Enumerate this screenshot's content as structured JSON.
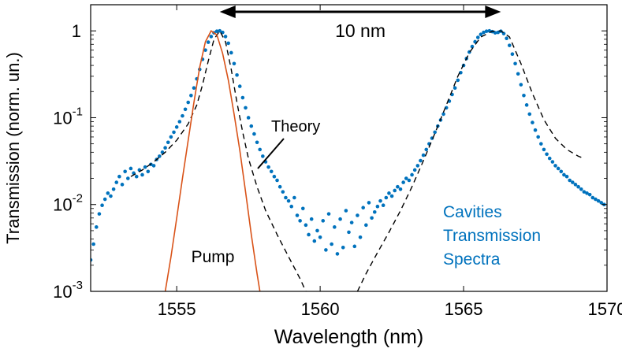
{
  "chart_data": {
    "type": "scatter",
    "title": "",
    "xlabel": "Wavelength (nm)",
    "ylabel": "Transmission (norm. un.)",
    "xlim": [
      1552,
      1570
    ],
    "ylim": [
      0.001,
      2
    ],
    "yscale": "log",
    "grid": false,
    "xticks": [
      1555,
      1560,
      1565,
      1570
    ],
    "xtick_labels": [
      "1555",
      "1560",
      "1565",
      "1570"
    ],
    "yticks": [
      {
        "value": 1,
        "base": "1",
        "exp": ""
      },
      {
        "value": 0.1,
        "base": "10",
        "exp": "-1"
      },
      {
        "value": 0.01,
        "base": "10",
        "exp": "-2"
      },
      {
        "value": 0.001,
        "base": "10",
        "exp": "-3"
      }
    ],
    "peaks_nm": [
      1556.5,
      1566.3
    ],
    "series": [
      {
        "name": "Cavities Transmission Spectra",
        "kind": "scatter",
        "color": "#0072BD",
        "points": [
          [
            1552.0,
            0.0023
          ],
          [
            1552.1,
            0.0035
          ],
          [
            1552.2,
            0.0055
          ],
          [
            1552.3,
            0.0078
          ],
          [
            1552.4,
            0.0098
          ],
          [
            1552.5,
            0.0115
          ],
          [
            1552.6,
            0.0135
          ],
          [
            1552.7,
            0.0125
          ],
          [
            1552.8,
            0.015
          ],
          [
            1552.9,
            0.018
          ],
          [
            1553.0,
            0.021
          ],
          [
            1553.1,
            0.017
          ],
          [
            1553.2,
            0.024
          ],
          [
            1553.3,
            0.02
          ],
          [
            1553.4,
            0.026
          ],
          [
            1553.5,
            0.023
          ],
          [
            1553.6,
            0.021
          ],
          [
            1553.7,
            0.025
          ],
          [
            1553.8,
            0.022
          ],
          [
            1553.9,
            0.027
          ],
          [
            1554.0,
            0.024
          ],
          [
            1554.1,
            0.029
          ],
          [
            1554.2,
            0.028
          ],
          [
            1554.3,
            0.033
          ],
          [
            1554.4,
            0.036
          ],
          [
            1554.5,
            0.04
          ],
          [
            1554.6,
            0.045
          ],
          [
            1554.7,
            0.052
          ],
          [
            1554.8,
            0.06
          ],
          [
            1554.9,
            0.068
          ],
          [
            1555.0,
            0.078
          ],
          [
            1555.1,
            0.09
          ],
          [
            1555.2,
            0.105
          ],
          [
            1555.3,
            0.125
          ],
          [
            1555.4,
            0.15
          ],
          [
            1555.5,
            0.18
          ],
          [
            1555.6,
            0.22
          ],
          [
            1555.7,
            0.28
          ],
          [
            1555.8,
            0.36
          ],
          [
            1555.9,
            0.47
          ],
          [
            1556.0,
            0.6
          ],
          [
            1556.1,
            0.74
          ],
          [
            1556.2,
            0.86
          ],
          [
            1556.3,
            0.95
          ],
          [
            1556.4,
            0.99
          ],
          [
            1556.5,
            1.0
          ],
          [
            1556.6,
            0.96
          ],
          [
            1556.7,
            0.86
          ],
          [
            1556.8,
            0.72
          ],
          [
            1556.9,
            0.56
          ],
          [
            1557.0,
            0.42
          ],
          [
            1557.1,
            0.31
          ],
          [
            1557.2,
            0.23
          ],
          [
            1557.3,
            0.17
          ],
          [
            1557.4,
            0.13
          ],
          [
            1557.5,
            0.1
          ],
          [
            1557.6,
            0.08
          ],
          [
            1557.7,
            0.065
          ],
          [
            1557.8,
            0.052
          ],
          [
            1557.9,
            0.043
          ],
          [
            1558.0,
            0.036
          ],
          [
            1558.1,
            0.031
          ],
          [
            1558.2,
            0.027
          ],
          [
            1558.3,
            0.024
          ],
          [
            1558.4,
            0.021
          ],
          [
            1558.5,
            0.019
          ],
          [
            1558.6,
            0.016
          ],
          [
            1558.7,
            0.014
          ],
          [
            1558.8,
            0.012
          ],
          [
            1558.9,
            0.011
          ],
          [
            1559.0,
            0.0095
          ],
          [
            1559.1,
            0.012
          ],
          [
            1559.2,
            0.0075
          ],
          [
            1559.3,
            0.0065
          ],
          [
            1559.4,
            0.009
          ],
          [
            1559.5,
            0.0058
          ],
          [
            1559.6,
            0.0045
          ],
          [
            1559.7,
            0.0068
          ],
          [
            1559.8,
            0.0038
          ],
          [
            1559.9,
            0.005
          ],
          [
            1560.0,
            0.0042
          ],
          [
            1560.1,
            0.0065
          ],
          [
            1560.2,
            0.003
          ],
          [
            1560.3,
            0.0078
          ],
          [
            1560.4,
            0.0035
          ],
          [
            1560.5,
            0.0055
          ],
          [
            1560.6,
            0.0027
          ],
          [
            1560.7,
            0.0068
          ],
          [
            1560.8,
            0.0032
          ],
          [
            1560.9,
            0.0085
          ],
          [
            1561.0,
            0.0048
          ],
          [
            1561.1,
            0.0062
          ],
          [
            1561.2,
            0.0033
          ],
          [
            1561.3,
            0.0075
          ],
          [
            1561.4,
            0.0042
          ],
          [
            1561.5,
            0.0092
          ],
          [
            1561.6,
            0.0058
          ],
          [
            1561.7,
            0.0105
          ],
          [
            1561.8,
            0.007
          ],
          [
            1561.9,
            0.0082
          ],
          [
            1562.0,
            0.0095
          ],
          [
            1562.1,
            0.011
          ],
          [
            1562.2,
            0.0098
          ],
          [
            1562.3,
            0.012
          ],
          [
            1562.4,
            0.0135
          ],
          [
            1562.5,
            0.0125
          ],
          [
            1562.6,
            0.0145
          ],
          [
            1562.7,
            0.016
          ],
          [
            1562.8,
            0.015
          ],
          [
            1562.9,
            0.018
          ],
          [
            1563.0,
            0.02
          ],
          [
            1563.1,
            0.019
          ],
          [
            1563.2,
            0.022
          ],
          [
            1563.3,
            0.025
          ],
          [
            1563.4,
            0.028
          ],
          [
            1563.5,
            0.032
          ],
          [
            1563.6,
            0.037
          ],
          [
            1563.7,
            0.043
          ],
          [
            1563.8,
            0.05
          ],
          [
            1563.9,
            0.058
          ],
          [
            1564.0,
            0.068
          ],
          [
            1564.1,
            0.08
          ],
          [
            1564.2,
            0.094
          ],
          [
            1564.3,
            0.11
          ],
          [
            1564.4,
            0.13
          ],
          [
            1564.5,
            0.155
          ],
          [
            1564.6,
            0.185
          ],
          [
            1564.7,
            0.22
          ],
          [
            1564.8,
            0.27
          ],
          [
            1564.9,
            0.33
          ],
          [
            1565.0,
            0.4
          ],
          [
            1565.1,
            0.48
          ],
          [
            1565.2,
            0.57
          ],
          [
            1565.3,
            0.66
          ],
          [
            1565.4,
            0.75
          ],
          [
            1565.5,
            0.84
          ],
          [
            1565.6,
            0.91
          ],
          [
            1565.7,
            0.96
          ],
          [
            1565.8,
            0.99
          ],
          [
            1565.9,
            1.0
          ],
          [
            1566.0,
            0.98
          ],
          [
            1566.1,
            0.95
          ],
          [
            1566.2,
            0.96
          ],
          [
            1566.3,
            0.99
          ],
          [
            1566.4,
            0.93
          ],
          [
            1566.5,
            0.82
          ],
          [
            1566.6,
            0.68
          ],
          [
            1566.7,
            0.54
          ],
          [
            1566.8,
            0.42
          ],
          [
            1566.9,
            0.32
          ],
          [
            1567.0,
            0.24
          ],
          [
            1567.1,
            0.18
          ],
          [
            1567.2,
            0.14
          ],
          [
            1567.3,
            0.11
          ],
          [
            1567.4,
            0.088
          ],
          [
            1567.5,
            0.072
          ],
          [
            1567.6,
            0.06
          ],
          [
            1567.7,
            0.05
          ],
          [
            1567.8,
            0.043
          ],
          [
            1567.9,
            0.038
          ],
          [
            1568.0,
            0.034
          ],
          [
            1568.1,
            0.031
          ],
          [
            1568.2,
            0.028
          ],
          [
            1568.3,
            0.026
          ],
          [
            1568.4,
            0.024
          ],
          [
            1568.5,
            0.022
          ],
          [
            1568.6,
            0.021
          ],
          [
            1568.7,
            0.019
          ],
          [
            1568.8,
            0.018
          ],
          [
            1568.9,
            0.017
          ],
          [
            1569.0,
            0.016
          ],
          [
            1569.1,
            0.015
          ],
          [
            1569.2,
            0.014
          ],
          [
            1569.3,
            0.0135
          ],
          [
            1569.4,
            0.013
          ],
          [
            1569.5,
            0.012
          ],
          [
            1569.6,
            0.0115
          ],
          [
            1569.7,
            0.011
          ],
          [
            1569.8,
            0.0105
          ],
          [
            1569.9,
            0.01
          ]
        ]
      },
      {
        "name": "Theory",
        "kind": "dashed-line",
        "color": "#000000",
        "points": [
          [
            1553.4,
            0.021
          ],
          [
            1553.8,
            0.025
          ],
          [
            1554.2,
            0.031
          ],
          [
            1554.6,
            0.04
          ],
          [
            1555.0,
            0.055
          ],
          [
            1555.4,
            0.085
          ],
          [
            1555.7,
            0.14
          ],
          [
            1555.9,
            0.24
          ],
          [
            1556.1,
            0.45
          ],
          [
            1556.3,
            0.8
          ],
          [
            1556.5,
            1.0
          ],
          [
            1556.7,
            0.75
          ],
          [
            1556.9,
            0.36
          ],
          [
            1557.1,
            0.15
          ],
          [
            1557.3,
            0.068
          ],
          [
            1557.5,
            0.034
          ],
          [
            1557.8,
            0.016
          ],
          [
            1558.1,
            0.0085
          ],
          [
            1558.5,
            0.0045
          ],
          [
            1558.9,
            0.0025
          ],
          [
            1559.3,
            0.0014
          ],
          [
            1559.5,
            0.001
          ],
          [
            1561.3,
            0.001
          ],
          [
            1561.6,
            0.0016
          ],
          [
            1562.0,
            0.0028
          ],
          [
            1562.4,
            0.0048
          ],
          [
            1562.8,
            0.0085
          ],
          [
            1563.2,
            0.016
          ],
          [
            1563.6,
            0.032
          ],
          [
            1564.0,
            0.066
          ],
          [
            1564.4,
            0.14
          ],
          [
            1564.8,
            0.3
          ],
          [
            1565.2,
            0.56
          ],
          [
            1565.6,
            0.85
          ],
          [
            1566.0,
            0.99
          ],
          [
            1566.3,
            1.0
          ],
          [
            1566.6,
            0.85
          ],
          [
            1567.0,
            0.42
          ],
          [
            1567.4,
            0.19
          ],
          [
            1567.8,
            0.095
          ],
          [
            1568.2,
            0.058
          ],
          [
            1568.6,
            0.043
          ],
          [
            1569.0,
            0.036
          ],
          [
            1569.2,
            0.034
          ]
        ]
      },
      {
        "name": "Pump",
        "kind": "line",
        "color": "#D95319",
        "points": [
          [
            1554.6,
            0.001
          ],
          [
            1554.8,
            0.0025
          ],
          [
            1555.0,
            0.007
          ],
          [
            1555.2,
            0.02
          ],
          [
            1555.4,
            0.055
          ],
          [
            1555.6,
            0.15
          ],
          [
            1555.8,
            0.38
          ],
          [
            1556.0,
            0.75
          ],
          [
            1556.2,
            1.0
          ],
          [
            1556.4,
            0.9
          ],
          [
            1556.6,
            0.55
          ],
          [
            1556.8,
            0.27
          ],
          [
            1557.0,
            0.11
          ],
          [
            1557.2,
            0.042
          ],
          [
            1557.4,
            0.014
          ],
          [
            1557.6,
            0.0045
          ],
          [
            1557.8,
            0.0016
          ],
          [
            1557.9,
            0.001
          ]
        ]
      }
    ],
    "annotations": {
      "spacing_label": "10 nm",
      "theory_label": "Theory",
      "pump_label": "Pump",
      "cavity_label_lines": [
        "Cavities",
        "Transmission",
        "Spectra"
      ]
    }
  },
  "colors": {
    "scatter": "#0072BD",
    "pump": "#D95319",
    "theory": "#000000",
    "axis": "#000000"
  }
}
